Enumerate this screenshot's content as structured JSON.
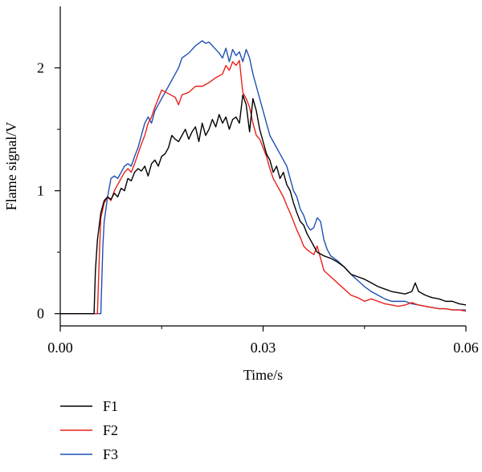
{
  "chart_data": {
    "type": "line",
    "title": "",
    "xlabel": "Time/s",
    "ylabel": "Flame signal/V",
    "xlim": [
      0,
      0.06
    ],
    "ylim": [
      -0.1,
      2.5
    ],
    "x_ticks": [
      {
        "value": 0.0,
        "label": "0.00"
      },
      {
        "value": 0.03,
        "label": "0.03"
      },
      {
        "value": 0.06,
        "label": "0.06"
      }
    ],
    "x_minor_ticks": [
      0.015,
      0.045
    ],
    "y_ticks": [
      {
        "value": 0,
        "label": "0"
      },
      {
        "value": 1,
        "label": "1"
      },
      {
        "value": 2,
        "label": "2"
      }
    ],
    "y_minor_ticks": [
      0.5,
      1.5
    ],
    "grid": false,
    "legend_position": "bottom-left, below plot",
    "series": [
      {
        "name": "F1",
        "color": "#000000",
        "points": [
          [
            0.0,
            0.0
          ],
          [
            0.005,
            0.0
          ],
          [
            0.0052,
            0.35
          ],
          [
            0.0055,
            0.6
          ],
          [
            0.006,
            0.82
          ],
          [
            0.0065,
            0.92
          ],
          [
            0.007,
            0.95
          ],
          [
            0.0075,
            0.93
          ],
          [
            0.008,
            0.98
          ],
          [
            0.0085,
            0.95
          ],
          [
            0.009,
            1.02
          ],
          [
            0.0095,
            1.0
          ],
          [
            0.01,
            1.1
          ],
          [
            0.0105,
            1.08
          ],
          [
            0.011,
            1.15
          ],
          [
            0.0115,
            1.18
          ],
          [
            0.012,
            1.16
          ],
          [
            0.0125,
            1.2
          ],
          [
            0.013,
            1.12
          ],
          [
            0.0135,
            1.22
          ],
          [
            0.014,
            1.25
          ],
          [
            0.0145,
            1.2
          ],
          [
            0.015,
            1.28
          ],
          [
            0.0155,
            1.3
          ],
          [
            0.016,
            1.35
          ],
          [
            0.0165,
            1.45
          ],
          [
            0.017,
            1.42
          ],
          [
            0.0175,
            1.4
          ],
          [
            0.018,
            1.45
          ],
          [
            0.0185,
            1.5
          ],
          [
            0.019,
            1.42
          ],
          [
            0.0195,
            1.48
          ],
          [
            0.02,
            1.52
          ],
          [
            0.0205,
            1.4
          ],
          [
            0.021,
            1.55
          ],
          [
            0.0215,
            1.45
          ],
          [
            0.022,
            1.5
          ],
          [
            0.0225,
            1.58
          ],
          [
            0.023,
            1.52
          ],
          [
            0.0235,
            1.62
          ],
          [
            0.024,
            1.55
          ],
          [
            0.0245,
            1.6
          ],
          [
            0.025,
            1.5
          ],
          [
            0.0255,
            1.58
          ],
          [
            0.026,
            1.6
          ],
          [
            0.0265,
            1.55
          ],
          [
            0.027,
            1.78
          ],
          [
            0.0275,
            1.7
          ],
          [
            0.028,
            1.48
          ],
          [
            0.0285,
            1.75
          ],
          [
            0.029,
            1.65
          ],
          [
            0.0295,
            1.5
          ],
          [
            0.03,
            1.4
          ],
          [
            0.0305,
            1.3
          ],
          [
            0.031,
            1.25
          ],
          [
            0.0315,
            1.15
          ],
          [
            0.032,
            1.2
          ],
          [
            0.0325,
            1.1
          ],
          [
            0.033,
            1.15
          ],
          [
            0.0335,
            1.05
          ],
          [
            0.034,
            1.0
          ],
          [
            0.0345,
            0.9
          ],
          [
            0.035,
            0.82
          ],
          [
            0.0355,
            0.75
          ],
          [
            0.036,
            0.72
          ],
          [
            0.0365,
            0.65
          ],
          [
            0.037,
            0.6
          ],
          [
            0.0375,
            0.55
          ],
          [
            0.038,
            0.5
          ],
          [
            0.039,
            0.47
          ],
          [
            0.04,
            0.45
          ],
          [
            0.041,
            0.42
          ],
          [
            0.042,
            0.38
          ],
          [
            0.043,
            0.32
          ],
          [
            0.044,
            0.3
          ],
          [
            0.045,
            0.28
          ],
          [
            0.046,
            0.25
          ],
          [
            0.047,
            0.22
          ],
          [
            0.048,
            0.2
          ],
          [
            0.049,
            0.18
          ],
          [
            0.05,
            0.17
          ],
          [
            0.051,
            0.16
          ],
          [
            0.052,
            0.18
          ],
          [
            0.0525,
            0.25
          ],
          [
            0.053,
            0.18
          ],
          [
            0.054,
            0.15
          ],
          [
            0.055,
            0.13
          ],
          [
            0.056,
            0.12
          ],
          [
            0.057,
            0.1
          ],
          [
            0.058,
            0.1
          ],
          [
            0.059,
            0.08
          ],
          [
            0.06,
            0.07
          ]
        ]
      },
      {
        "name": "F2",
        "color": "#e8221a",
        "points": [
          [
            0.0,
            0.0
          ],
          [
            0.0055,
            0.0
          ],
          [
            0.0058,
            0.5
          ],
          [
            0.006,
            0.78
          ],
          [
            0.0065,
            0.9
          ],
          [
            0.007,
            0.95
          ],
          [
            0.0075,
            0.92
          ],
          [
            0.008,
            1.0
          ],
          [
            0.0085,
            1.05
          ],
          [
            0.009,
            1.1
          ],
          [
            0.0095,
            1.15
          ],
          [
            0.01,
            1.18
          ],
          [
            0.0105,
            1.15
          ],
          [
            0.011,
            1.22
          ],
          [
            0.0115,
            1.3
          ],
          [
            0.012,
            1.38
          ],
          [
            0.0125,
            1.45
          ],
          [
            0.013,
            1.55
          ],
          [
            0.0135,
            1.6
          ],
          [
            0.014,
            1.68
          ],
          [
            0.0145,
            1.75
          ],
          [
            0.015,
            1.82
          ],
          [
            0.016,
            1.79
          ],
          [
            0.017,
            1.76
          ],
          [
            0.0175,
            1.7
          ],
          [
            0.018,
            1.78
          ],
          [
            0.019,
            1.8
          ],
          [
            0.02,
            1.85
          ],
          [
            0.021,
            1.85
          ],
          [
            0.022,
            1.88
          ],
          [
            0.023,
            1.92
          ],
          [
            0.024,
            1.95
          ],
          [
            0.0245,
            2.02
          ],
          [
            0.025,
            1.98
          ],
          [
            0.0255,
            2.05
          ],
          [
            0.026,
            2.02
          ],
          [
            0.0265,
            2.06
          ],
          [
            0.027,
            1.8
          ],
          [
            0.0275,
            1.75
          ],
          [
            0.028,
            1.68
          ],
          [
            0.0285,
            1.55
          ],
          [
            0.029,
            1.45
          ],
          [
            0.0295,
            1.42
          ],
          [
            0.03,
            1.35
          ],
          [
            0.0305,
            1.28
          ],
          [
            0.031,
            1.18
          ],
          [
            0.0315,
            1.1
          ],
          [
            0.032,
            1.05
          ],
          [
            0.0325,
            1.0
          ],
          [
            0.033,
            0.95
          ],
          [
            0.0335,
            0.88
          ],
          [
            0.034,
            0.82
          ],
          [
            0.0345,
            0.75
          ],
          [
            0.035,
            0.68
          ],
          [
            0.0355,
            0.62
          ],
          [
            0.036,
            0.55
          ],
          [
            0.0365,
            0.52
          ],
          [
            0.037,
            0.5
          ],
          [
            0.0375,
            0.48
          ],
          [
            0.038,
            0.55
          ],
          [
            0.0385,
            0.45
          ],
          [
            0.039,
            0.35
          ],
          [
            0.04,
            0.3
          ],
          [
            0.041,
            0.25
          ],
          [
            0.042,
            0.2
          ],
          [
            0.043,
            0.15
          ],
          [
            0.044,
            0.13
          ],
          [
            0.045,
            0.1
          ],
          [
            0.046,
            0.12
          ],
          [
            0.047,
            0.1
          ],
          [
            0.048,
            0.08
          ],
          [
            0.049,
            0.07
          ],
          [
            0.05,
            0.06
          ],
          [
            0.051,
            0.07
          ],
          [
            0.052,
            0.09
          ],
          [
            0.053,
            0.07
          ],
          [
            0.054,
            0.06
          ],
          [
            0.055,
            0.05
          ],
          [
            0.056,
            0.04
          ],
          [
            0.057,
            0.04
          ],
          [
            0.058,
            0.03
          ],
          [
            0.059,
            0.03
          ],
          [
            0.06,
            0.02
          ]
        ]
      },
      {
        "name": "F3",
        "color": "#1f50b4",
        "points": [
          [
            0.0,
            0.0
          ],
          [
            0.006,
            0.0
          ],
          [
            0.0063,
            0.55
          ],
          [
            0.0065,
            0.75
          ],
          [
            0.007,
            0.95
          ],
          [
            0.0075,
            1.1
          ],
          [
            0.008,
            1.12
          ],
          [
            0.0085,
            1.1
          ],
          [
            0.009,
            1.15
          ],
          [
            0.0095,
            1.2
          ],
          [
            0.01,
            1.22
          ],
          [
            0.0105,
            1.2
          ],
          [
            0.011,
            1.28
          ],
          [
            0.0115,
            1.35
          ],
          [
            0.012,
            1.45
          ],
          [
            0.0125,
            1.55
          ],
          [
            0.013,
            1.6
          ],
          [
            0.0135,
            1.55
          ],
          [
            0.014,
            1.65
          ],
          [
            0.0145,
            1.7
          ],
          [
            0.015,
            1.75
          ],
          [
            0.0155,
            1.8
          ],
          [
            0.016,
            1.85
          ],
          [
            0.0165,
            1.9
          ],
          [
            0.017,
            1.95
          ],
          [
            0.0175,
            2.0
          ],
          [
            0.018,
            2.08
          ],
          [
            0.0185,
            2.1
          ],
          [
            0.019,
            2.12
          ],
          [
            0.0195,
            2.15
          ],
          [
            0.02,
            2.18
          ],
          [
            0.0205,
            2.2
          ],
          [
            0.021,
            2.22
          ],
          [
            0.0215,
            2.2
          ],
          [
            0.022,
            2.21
          ],
          [
            0.0225,
            2.18
          ],
          [
            0.023,
            2.15
          ],
          [
            0.0235,
            2.12
          ],
          [
            0.024,
            2.08
          ],
          [
            0.0245,
            2.16
          ],
          [
            0.025,
            2.05
          ],
          [
            0.0255,
            2.15
          ],
          [
            0.026,
            2.1
          ],
          [
            0.0265,
            2.13
          ],
          [
            0.027,
            2.05
          ],
          [
            0.0275,
            2.15
          ],
          [
            0.028,
            2.08
          ],
          [
            0.0285,
            1.95
          ],
          [
            0.029,
            1.85
          ],
          [
            0.0295,
            1.75
          ],
          [
            0.03,
            1.65
          ],
          [
            0.0305,
            1.55
          ],
          [
            0.031,
            1.45
          ],
          [
            0.0315,
            1.4
          ],
          [
            0.032,
            1.35
          ],
          [
            0.0325,
            1.3
          ],
          [
            0.033,
            1.25
          ],
          [
            0.0335,
            1.2
          ],
          [
            0.034,
            1.1
          ],
          [
            0.0345,
            1.0
          ],
          [
            0.035,
            0.95
          ],
          [
            0.0355,
            0.85
          ],
          [
            0.036,
            0.8
          ],
          [
            0.0365,
            0.72
          ],
          [
            0.037,
            0.68
          ],
          [
            0.0375,
            0.7
          ],
          [
            0.038,
            0.78
          ],
          [
            0.0385,
            0.75
          ],
          [
            0.039,
            0.6
          ],
          [
            0.0395,
            0.52
          ],
          [
            0.04,
            0.47
          ],
          [
            0.041,
            0.43
          ],
          [
            0.042,
            0.38
          ],
          [
            0.043,
            0.32
          ],
          [
            0.044,
            0.27
          ],
          [
            0.045,
            0.22
          ],
          [
            0.046,
            0.18
          ],
          [
            0.047,
            0.15
          ],
          [
            0.048,
            0.12
          ],
          [
            0.049,
            0.1
          ],
          [
            0.05,
            0.1
          ],
          [
            0.051,
            0.1
          ],
          [
            0.052,
            0.08
          ],
          [
            0.053,
            0.07
          ],
          [
            0.054,
            0.06
          ],
          [
            0.055,
            0.05
          ],
          [
            0.056,
            0.04
          ],
          [
            0.057,
            0.04
          ],
          [
            0.058,
            0.03
          ],
          [
            0.059,
            0.03
          ],
          [
            0.06,
            0.03
          ]
        ]
      }
    ]
  }
}
